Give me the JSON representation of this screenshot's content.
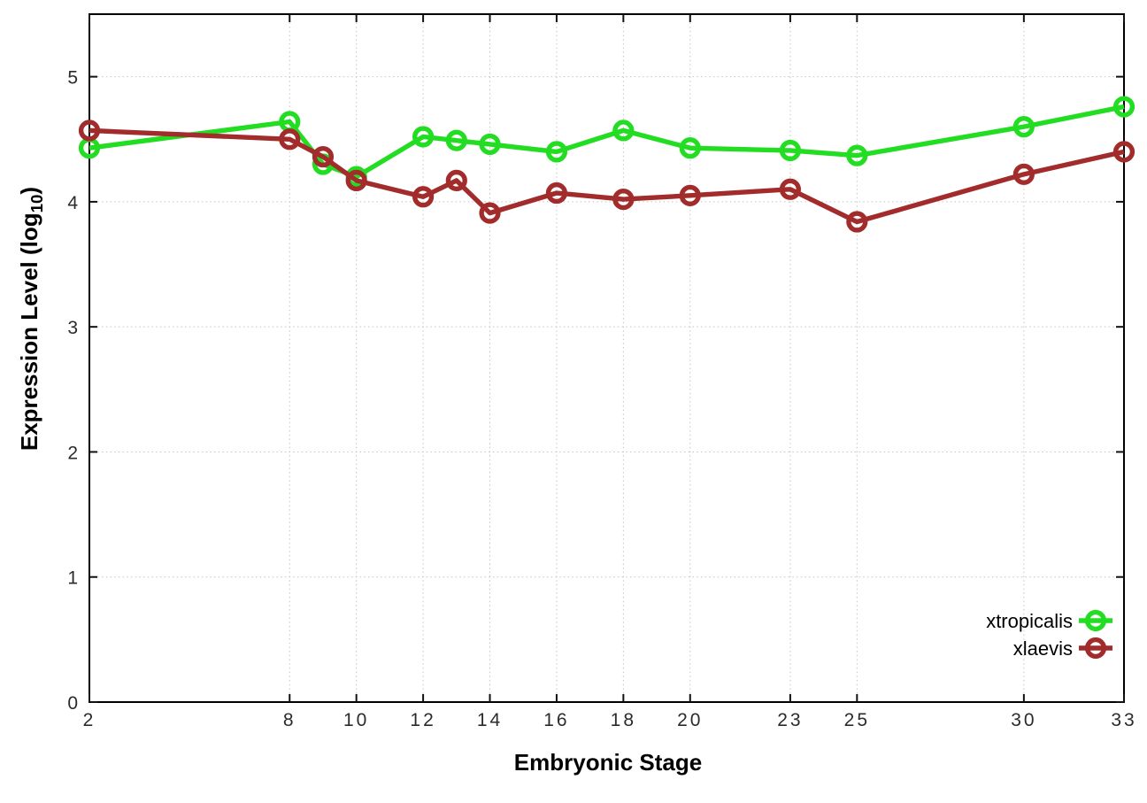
{
  "chart_data": {
    "type": "line",
    "title": "",
    "xlabel": "Embryonic Stage",
    "ylabel_parts": {
      "main": "Expression Level (log",
      "sub": "10",
      "end": ")"
    },
    "x": [
      2,
      8,
      9,
      10,
      12,
      13,
      14,
      16,
      18,
      20,
      23,
      25,
      30,
      33
    ],
    "series": [
      {
        "name": "xtropicalis",
        "color": "#22dd22",
        "values": [
          4.43,
          4.64,
          4.3,
          4.2,
          4.52,
          4.49,
          4.46,
          4.4,
          4.57,
          4.43,
          4.41,
          4.37,
          4.6,
          4.76
        ]
      },
      {
        "name": "xlaevis",
        "color": "#a22c2c",
        "values": [
          4.57,
          4.5,
          4.36,
          4.17,
          4.04,
          4.17,
          3.91,
          4.07,
          4.02,
          4.05,
          4.1,
          3.84,
          4.22,
          4.4
        ]
      }
    ],
    "x_ticks": [
      2,
      8,
      10,
      12,
      14,
      16,
      18,
      20,
      23,
      25,
      30,
      33
    ],
    "y_ticks": [
      0,
      1,
      2,
      3,
      4,
      5
    ],
    "xlim": [
      2,
      33
    ],
    "ylim": [
      0,
      5.5
    ],
    "grid": true,
    "legend_position": "bottom-right",
    "marker": "open-circle",
    "colors": {
      "border": "#000000",
      "tick_text": "#2b2b2b",
      "grid": "#c4c4c4",
      "background": "#ffffff"
    }
  }
}
